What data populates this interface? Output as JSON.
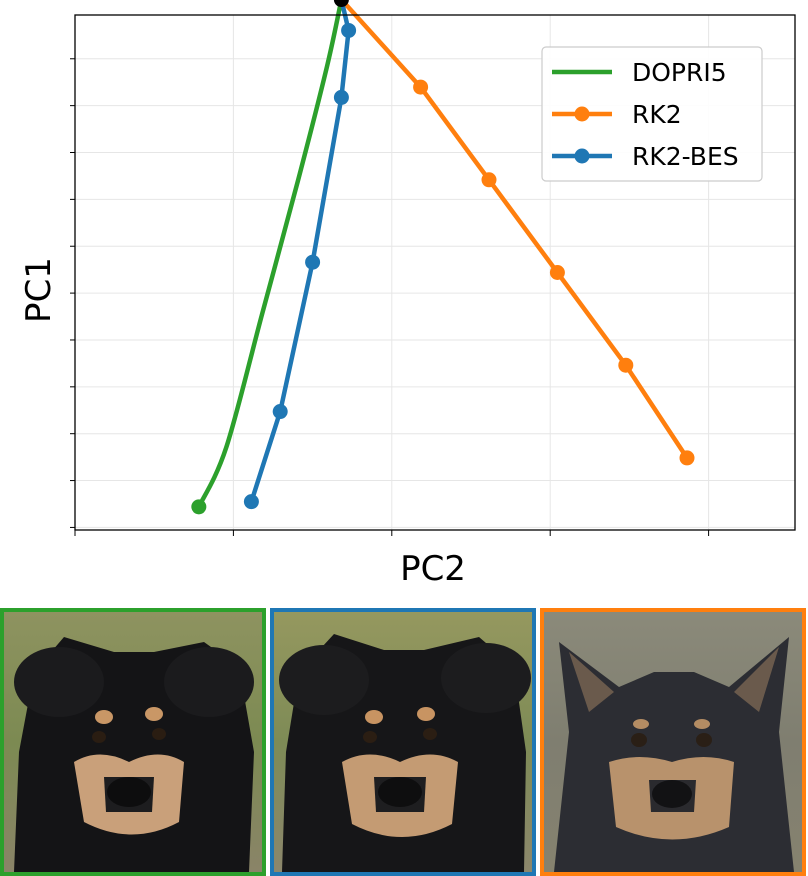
{
  "chart_data": {
    "type": "line",
    "xlabel": "PC2",
    "ylabel": "PC1",
    "xlim": [
      0,
      10
    ],
    "ylim": [
      0,
      10
    ],
    "tick_labels_shown": false,
    "grid": true,
    "legend_position": "top-right",
    "start_point": {
      "x": 3.7,
      "y": 10.3,
      "color": "#000000"
    },
    "series": [
      {
        "name": "DOPRI5",
        "color": "#2ca02c",
        "markers": false,
        "x": [
          3.7,
          3.5,
          3.1,
          2.6,
          2.1,
          1.72
        ],
        "y": [
          10.3,
          9.0,
          6.8,
          4.2,
          1.6,
          0.45
        ],
        "end_marker": true
      },
      {
        "name": "RK2",
        "color": "#ff7f0e",
        "markers": true,
        "x": [
          3.7,
          4.8,
          5.75,
          6.7,
          7.65,
          8.5
        ],
        "y": [
          10.3,
          8.6,
          6.8,
          5.0,
          3.2,
          1.4
        ]
      },
      {
        "name": "RK2-BES",
        "color": "#1f77b4",
        "markers": true,
        "x": [
          3.7,
          3.8,
          3.7,
          3.3,
          2.85,
          2.45
        ],
        "y": [
          10.3,
          9.7,
          8.4,
          5.2,
          2.3,
          0.55
        ]
      }
    ]
  },
  "panels": [
    {
      "name": "DOPRI5",
      "border_color": "#2ca02c"
    },
    {
      "name": "RK2-BES",
      "border_color": "#1f77b4"
    },
    {
      "name": "RK2",
      "border_color": "#ff7f0e"
    }
  ]
}
